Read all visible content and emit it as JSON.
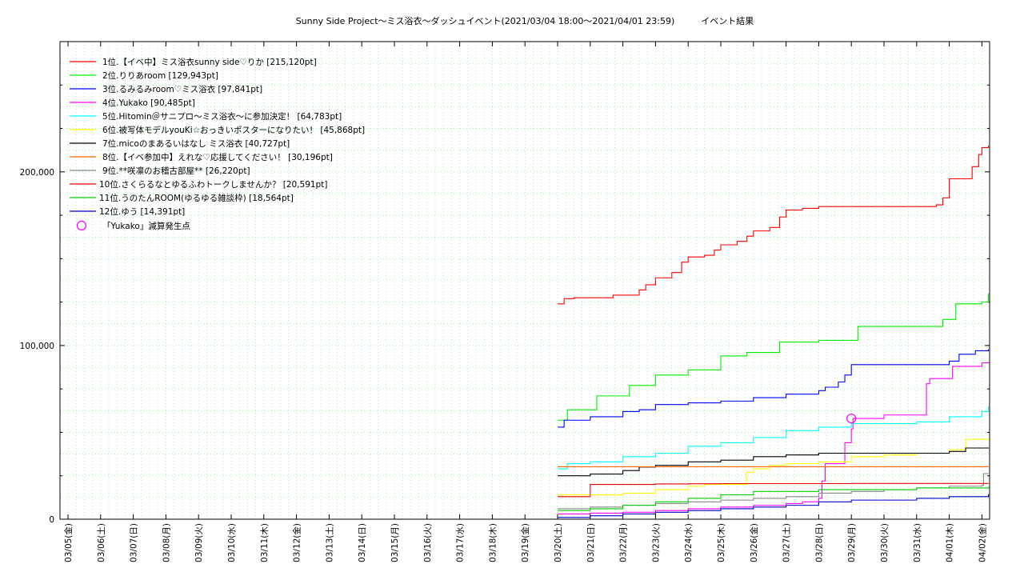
{
  "chart_data": {
    "type": "line",
    "title": "Sunny Side Project～ミス浴衣～ダッシュイベント(2021/03/04 18:00～2021/04/01 23:59)　　　イベント結果",
    "xlabel": "",
    "ylabel": "",
    "ylim": [
      0,
      275000
    ],
    "yticks": [
      0,
      100000,
      200000
    ],
    "ytick_labels": [
      "0",
      "100,000",
      "200,000"
    ],
    "x_categories": [
      "03/05(金)",
      "03/06(土)",
      "03/07(日)",
      "03/08(月)",
      "03/09(火)",
      "03/10(水)",
      "03/11(木)",
      "03/12(金)",
      "03/13(土)",
      "03/14(日)",
      "03/15(月)",
      "03/16(火)",
      "03/17(水)",
      "03/18(木)",
      "03/19(金)",
      "03/20(土)",
      "03/21(日)",
      "03/22(月)",
      "03/23(火)",
      "03/24(水)",
      "03/25(木)",
      "03/26(金)",
      "03/27(土)",
      "03/28(日)",
      "03/29(月)",
      "03/30(火)",
      "03/31(水)",
      "04/01(木)",
      "04/02(金)"
    ],
    "grid": true,
    "legend_position": "top-left",
    "series": [
      {
        "name": "1位.【イベ中】ミス浴衣sunny side♡りか [215,120pt]",
        "color": "#ff0000",
        "points": [
          [
            15.0,
            124000
          ],
          [
            15.2,
            127000
          ],
          [
            15.5,
            127500
          ],
          [
            16.0,
            127500
          ],
          [
            16.7,
            129000
          ],
          [
            17.0,
            129000
          ],
          [
            17.5,
            132000
          ],
          [
            17.7,
            135000
          ],
          [
            18.0,
            139000
          ],
          [
            18.5,
            142000
          ],
          [
            18.8,
            148000
          ],
          [
            19.0,
            151000
          ],
          [
            19.5,
            152000
          ],
          [
            19.8,
            155000
          ],
          [
            20.0,
            158000
          ],
          [
            20.5,
            160000
          ],
          [
            20.8,
            163000
          ],
          [
            21.0,
            166000
          ],
          [
            21.5,
            168000
          ],
          [
            21.8,
            174000
          ],
          [
            22.0,
            178000
          ],
          [
            22.5,
            179000
          ],
          [
            23.0,
            180000
          ],
          [
            24.0,
            180000
          ],
          [
            25.0,
            180000
          ],
          [
            26.0,
            180000
          ],
          [
            26.6,
            181000
          ],
          [
            26.8,
            185000
          ],
          [
            27.0,
            196000
          ],
          [
            27.5,
            196000
          ],
          [
            27.7,
            203000
          ],
          [
            27.9,
            210000
          ],
          [
            28.0,
            214000
          ],
          [
            28.2,
            215120
          ]
        ]
      },
      {
        "name": "2位.りりあroom [129,943pt]",
        "color": "#00ee00",
        "points": [
          [
            15.0,
            57000
          ],
          [
            15.3,
            63000
          ],
          [
            16.0,
            63000
          ],
          [
            16.2,
            71000
          ],
          [
            17.0,
            71000
          ],
          [
            17.2,
            77000
          ],
          [
            17.8,
            77000
          ],
          [
            18.0,
            83000
          ],
          [
            18.8,
            83000
          ],
          [
            19.0,
            86000
          ],
          [
            19.9,
            86000
          ],
          [
            20.0,
            94000
          ],
          [
            20.5,
            94000
          ],
          [
            20.8,
            96000
          ],
          [
            21.5,
            96000
          ],
          [
            21.8,
            102000
          ],
          [
            22.5,
            102000
          ],
          [
            23.0,
            103000
          ],
          [
            24.0,
            103000
          ],
          [
            24.2,
            111000
          ],
          [
            25.0,
            111000
          ],
          [
            26.0,
            111000
          ],
          [
            26.7,
            111000
          ],
          [
            26.8,
            115000
          ],
          [
            27.0,
            115000
          ],
          [
            27.2,
            124000
          ],
          [
            27.5,
            124000
          ],
          [
            28.0,
            125000
          ],
          [
            28.2,
            129943
          ]
        ]
      },
      {
        "name": "3位.るみるみroom♡ミス浴衣 [97,841pt]",
        "color": "#0000ff",
        "points": [
          [
            15.0,
            53000
          ],
          [
            15.2,
            57000
          ],
          [
            16.0,
            59000
          ],
          [
            17.0,
            62000
          ],
          [
            17.5,
            63000
          ],
          [
            18.0,
            66000
          ],
          [
            19.0,
            67000
          ],
          [
            20.0,
            68000
          ],
          [
            21.0,
            70000
          ],
          [
            22.0,
            72000
          ],
          [
            23.0,
            74000
          ],
          [
            23.2,
            76000
          ],
          [
            23.6,
            79000
          ],
          [
            23.8,
            83000
          ],
          [
            24.0,
            89000
          ],
          [
            25.0,
            89000
          ],
          [
            26.0,
            89000
          ],
          [
            27.0,
            91000
          ],
          [
            27.3,
            95000
          ],
          [
            27.8,
            97000
          ],
          [
            28.2,
            97841
          ]
        ]
      },
      {
        "name": "4位.Yukako [90,485pt]",
        "color": "#ff00ff",
        "points": [
          [
            15.0,
            3000
          ],
          [
            16.0,
            3500
          ],
          [
            17.0,
            4000
          ],
          [
            18.0,
            5000
          ],
          [
            19.0,
            6000
          ],
          [
            20.0,
            7000
          ],
          [
            21.0,
            8000
          ],
          [
            22.0,
            9000
          ],
          [
            22.5,
            10000
          ],
          [
            23.0,
            12000
          ],
          [
            23.1,
            22000
          ],
          [
            23.2,
            32000
          ],
          [
            23.6,
            32000
          ],
          [
            23.8,
            44000
          ],
          [
            24.0,
            52000
          ],
          [
            24.05,
            58000
          ],
          [
            25.0,
            60000
          ],
          [
            26.0,
            60000
          ],
          [
            26.2,
            60000
          ],
          [
            26.3,
            78000
          ],
          [
            26.4,
            81000
          ],
          [
            27.0,
            81000
          ],
          [
            27.1,
            88000
          ],
          [
            28.0,
            90000
          ],
          [
            28.2,
            90485
          ]
        ]
      },
      {
        "name": "5位.Hitomin＠サニプロ～ミス浴衣～に参加決定！ [64,783pt]",
        "color": "#00ffff",
        "points": [
          [
            15.0,
            29000
          ],
          [
            15.3,
            32000
          ],
          [
            16.0,
            33000
          ],
          [
            17.0,
            36000
          ],
          [
            18.0,
            38000
          ],
          [
            19.0,
            42000
          ],
          [
            20.0,
            44000
          ],
          [
            21.0,
            47000
          ],
          [
            22.0,
            51000
          ],
          [
            23.0,
            53000
          ],
          [
            24.0,
            55000
          ],
          [
            25.0,
            55000
          ],
          [
            26.0,
            56000
          ],
          [
            27.0,
            59000
          ],
          [
            28.0,
            62000
          ],
          [
            28.2,
            64783
          ]
        ]
      },
      {
        "name": "6位.被写体モデルyouKi☆おっきいポスターになりたい！ [45,868pt]",
        "color": "#ffff00",
        "points": [
          [
            15.0,
            14000
          ],
          [
            16.0,
            14000
          ],
          [
            17.0,
            15000
          ],
          [
            18.0,
            17000
          ],
          [
            19.0,
            19000
          ],
          [
            19.5,
            20000
          ],
          [
            20.0,
            20000
          ],
          [
            20.6,
            20000
          ],
          [
            20.8,
            27000
          ],
          [
            21.0,
            29000
          ],
          [
            21.5,
            31000
          ],
          [
            22.0,
            32000
          ],
          [
            23.0,
            33000
          ],
          [
            24.0,
            36000
          ],
          [
            25.0,
            37000
          ],
          [
            26.0,
            38000
          ],
          [
            27.0,
            40000
          ],
          [
            27.5,
            46000
          ],
          [
            28.2,
            45868
          ]
        ]
      },
      {
        "name": "7位.micoのまあるいはなし ミス浴衣 [40,727pt]",
        "color": "#000000",
        "points": [
          [
            15.0,
            25000
          ],
          [
            16.0,
            26000
          ],
          [
            17.0,
            28000
          ],
          [
            17.5,
            30000
          ],
          [
            18.0,
            31000
          ],
          [
            19.0,
            33000
          ],
          [
            20.0,
            34000
          ],
          [
            21.0,
            36000
          ],
          [
            22.0,
            37000
          ],
          [
            23.0,
            38000
          ],
          [
            24.0,
            38000
          ],
          [
            25.0,
            38000
          ],
          [
            26.0,
            38000
          ],
          [
            27.0,
            39000
          ],
          [
            27.5,
            41000
          ],
          [
            28.2,
            40727
          ]
        ]
      },
      {
        "name": "8位.【イベ参加中】えれな♡応援してください！ [30,196pt]",
        "color": "#ff6600",
        "points": [
          [
            15.0,
            30196
          ],
          [
            28.2,
            30196
          ]
        ]
      },
      {
        "name": "9位.**咲凛のお稽古部屋** [26,220pt]",
        "color": "#888888",
        "points": [
          [
            15.0,
            6000
          ],
          [
            16.0,
            7000
          ],
          [
            17.0,
            8000
          ],
          [
            18.0,
            9000
          ],
          [
            19.0,
            10000
          ],
          [
            20.0,
            11000
          ],
          [
            21.0,
            12000
          ],
          [
            22.0,
            13000
          ],
          [
            23.0,
            15000
          ],
          [
            24.0,
            16000
          ],
          [
            25.0,
            17000
          ],
          [
            26.0,
            18000
          ],
          [
            27.0,
            19000
          ],
          [
            28.0,
            19500
          ],
          [
            28.05,
            26220
          ],
          [
            28.2,
            26220
          ]
        ]
      },
      {
        "name": "10位.さくらるなとゆるふわトークしませんか？ [20,591pt]",
        "color": "#ee0000",
        "points": [
          [
            15.0,
            13000
          ],
          [
            15.9,
            13000
          ],
          [
            16.0,
            20000
          ],
          [
            17.0,
            20000
          ],
          [
            18.0,
            20300
          ],
          [
            19.0,
            20400
          ],
          [
            20.0,
            20500
          ],
          [
            22.0,
            20500
          ],
          [
            24.0,
            20591
          ],
          [
            28.2,
            20591
          ]
        ]
      },
      {
        "name": "11位.うのたんROOM(ゆるゆる雑談枠) [18,564pt]",
        "color": "#00cc00",
        "points": [
          [
            15.0,
            5000
          ],
          [
            16.0,
            6000
          ],
          [
            17.0,
            8000
          ],
          [
            18.0,
            10000
          ],
          [
            19.0,
            12000
          ],
          [
            20.0,
            14000
          ],
          [
            21.0,
            16000
          ],
          [
            22.0,
            16000
          ],
          [
            23.0,
            17000
          ],
          [
            24.0,
            17000
          ],
          [
            25.0,
            17000
          ],
          [
            26.0,
            18000
          ],
          [
            27.0,
            18000
          ],
          [
            28.2,
            18564
          ]
        ]
      },
      {
        "name": "12位.ゆう [14,391pt]",
        "color": "#0000cc",
        "points": [
          [
            15.0,
            1000
          ],
          [
            16.0,
            2000
          ],
          [
            17.0,
            3000
          ],
          [
            18.0,
            4000
          ],
          [
            19.0,
            5000
          ],
          [
            20.0,
            6000
          ],
          [
            21.0,
            7000
          ],
          [
            22.0,
            8000
          ],
          [
            23.0,
            10000
          ],
          [
            24.0,
            11000
          ],
          [
            25.0,
            11000
          ],
          [
            26.0,
            12000
          ],
          [
            27.0,
            13000
          ],
          [
            28.2,
            14391
          ]
        ]
      }
    ],
    "markers": [
      {
        "name": "「Yukako」減算発生点",
        "color": "#ff00ff",
        "shape": "circle",
        "x": 24.0,
        "y": 58000
      }
    ]
  }
}
